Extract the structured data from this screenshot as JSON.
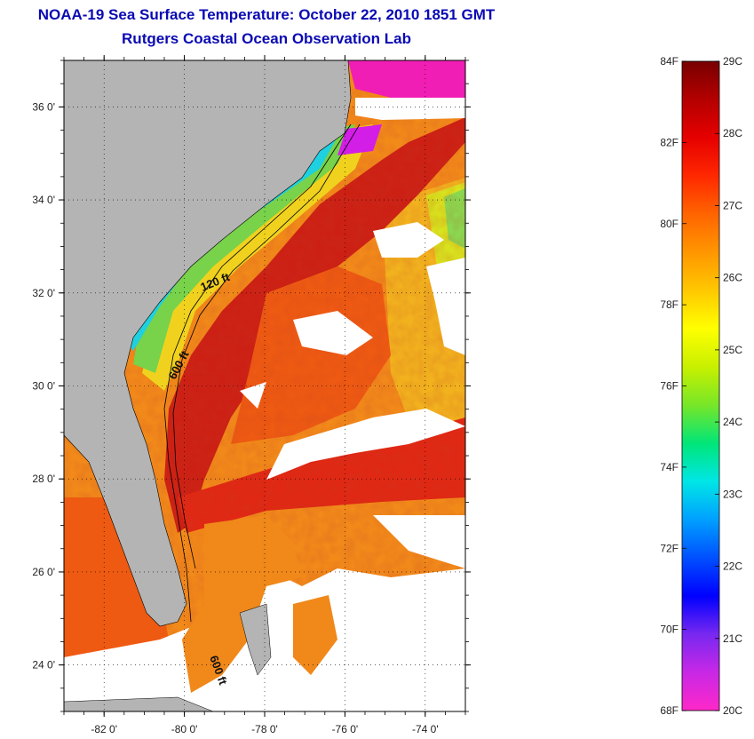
{
  "title": {
    "line1": "NOAA-19 Sea Surface Temperature:  October 22, 2010 1851 GMT",
    "line2": "Rutgers Coastal Ocean Observation Lab"
  },
  "map": {
    "lon_range": [
      -83,
      -73
    ],
    "lat_range": [
      23,
      37
    ],
    "lon_ticks": [
      {
        "value": -82,
        "label": "-82 0'"
      },
      {
        "value": -80,
        "label": "-80 0'"
      },
      {
        "value": -78,
        "label": "-78 0'"
      },
      {
        "value": -76,
        "label": "-76 0'"
      },
      {
        "value": -74,
        "label": "-74 0'"
      }
    ],
    "lat_ticks": [
      {
        "value": 24,
        "label": "24 0'"
      },
      {
        "value": 26,
        "label": "26 0'"
      },
      {
        "value": 28,
        "label": "28 0'"
      },
      {
        "value": 30,
        "label": "30 0'"
      },
      {
        "value": 32,
        "label": "32 0'"
      },
      {
        "value": 34,
        "label": "34 0'"
      },
      {
        "value": 36,
        "label": "36 0'"
      }
    ],
    "grid": "dotted",
    "isobath_labels": [
      "120 ft",
      "600 ft",
      "600 ft"
    ],
    "colors": {
      "land": "#b4b4b4",
      "cloud": "#ffffff",
      "gulf_stream": "#c81e14",
      "warm_ocean": "#f05a0a",
      "mid_ocean": "#f5961e",
      "shelf_yellow": "#e6e61e",
      "shelf_green": "#5ad25a",
      "shelf_cyan": "#1ed2e6",
      "cold_blue": "#1e64e6",
      "magenta": "#f01eb4"
    }
  },
  "colorbar": {
    "celsius_range": [
      20,
      29
    ],
    "fahrenheit_range": [
      68,
      84
    ],
    "celsius_labels": [
      "29C",
      "28C",
      "27C",
      "26C",
      "25C",
      "24C",
      "23C",
      "22C",
      "21C",
      "20C"
    ],
    "fahrenheit_labels": [
      "84F",
      "82F",
      "80F",
      "78F",
      "76F",
      "74F",
      "72F",
      "70F",
      "68F"
    ],
    "palette": [
      "#ff28c8",
      "#c828e6",
      "#7828f0",
      "#0000ff",
      "#0050ff",
      "#00a0ff",
      "#00e6e6",
      "#00e678",
      "#78e628",
      "#c8f000",
      "#ffff00",
      "#ffc800",
      "#ff9600",
      "#ff6400",
      "#ff2800",
      "#e60000",
      "#b40000",
      "#780000"
    ]
  }
}
